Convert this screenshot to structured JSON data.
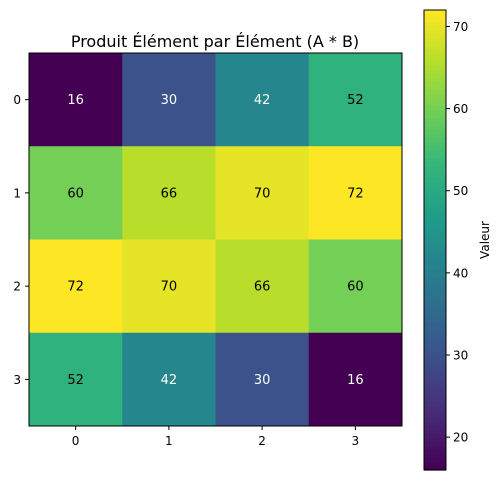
{
  "chart_data": {
    "type": "heatmap",
    "title": "Produit Élément par Élément (A * B)",
    "x_ticks": [
      "0",
      "1",
      "2",
      "3"
    ],
    "y_ticks": [
      "0",
      "1",
      "2",
      "3"
    ],
    "values": [
      [
        16,
        30,
        42,
        52
      ],
      [
        60,
        66,
        70,
        72
      ],
      [
        72,
        70,
        66,
        60
      ],
      [
        52,
        42,
        30,
        16
      ]
    ],
    "colorbar": {
      "label": "Valeur",
      "ticks": [
        20,
        30,
        40,
        50,
        60,
        70
      ],
      "range": [
        16,
        72
      ],
      "colormap": "viridis"
    }
  }
}
